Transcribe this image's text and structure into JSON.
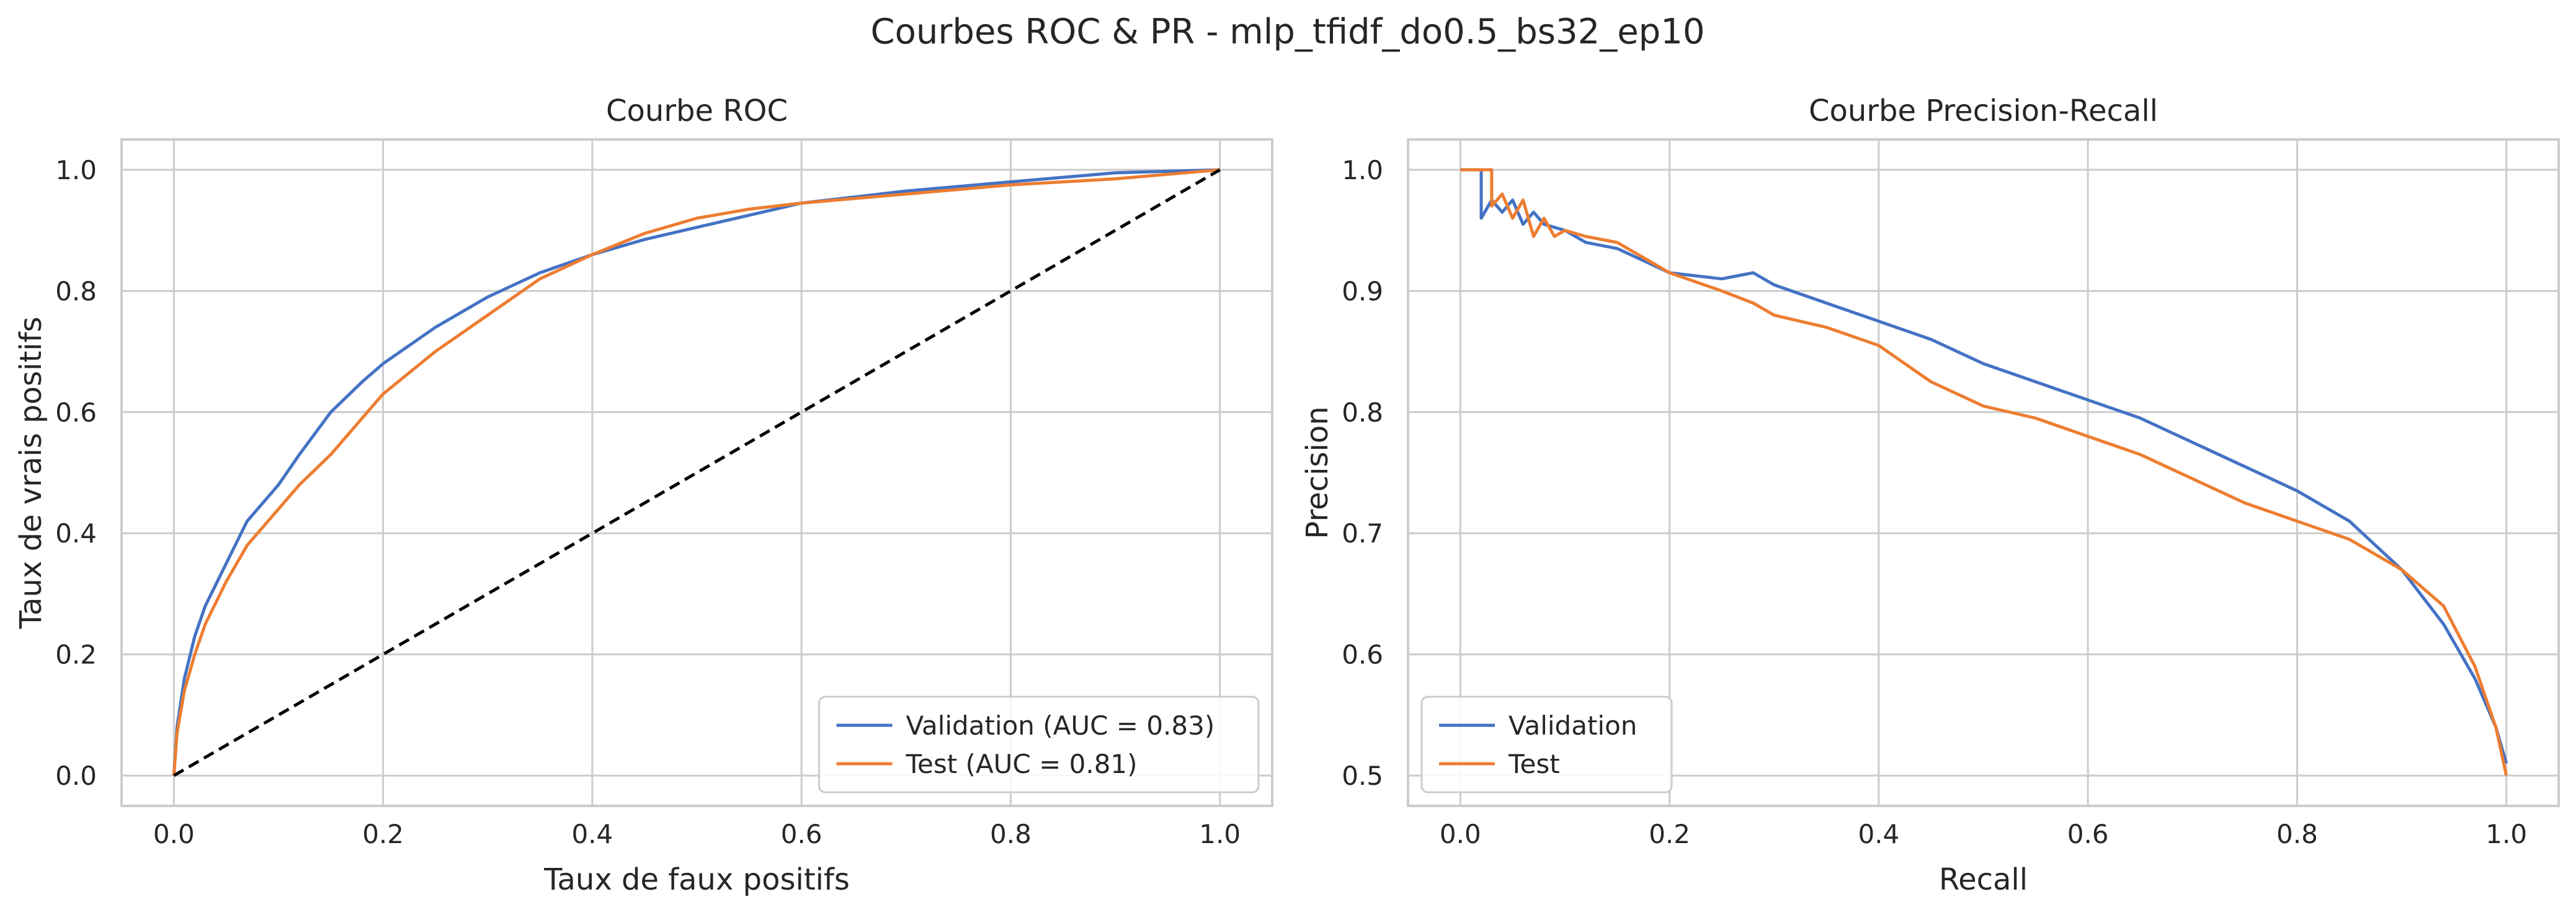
{
  "figure": {
    "title": "Courbes ROC & PR - mlp_tfidf_do0.5_bs32_ep10"
  },
  "colors": {
    "validation": "#4472c4",
    "test": "#ed7d31",
    "diagonal": "#000000",
    "grid": "#cccccc"
  },
  "chart_data": [
    {
      "type": "line",
      "title": "Courbe ROC",
      "xlabel": "Taux de faux positifs",
      "ylabel": "Taux de vrais positifs",
      "xlim": [
        -0.05,
        1.05
      ],
      "ylim": [
        -0.05,
        1.05
      ],
      "xticks": [
        0.0,
        0.2,
        0.4,
        0.6,
        0.8,
        1.0
      ],
      "yticks": [
        0.0,
        0.2,
        0.4,
        0.6,
        0.8,
        1.0
      ],
      "xtick_labels": [
        "0.0",
        "0.2",
        "0.4",
        "0.6",
        "0.8",
        "1.0"
      ],
      "ytick_labels": [
        "0.0",
        "0.2",
        "0.4",
        "0.6",
        "0.8",
        "1.0"
      ],
      "grid": true,
      "legend_position": "lower-right",
      "series": [
        {
          "name": "Validation (AUC = 0.83)",
          "color": "#4472c4",
          "style": "solid",
          "x": [
            0.0,
            0.003,
            0.01,
            0.02,
            0.03,
            0.05,
            0.07,
            0.1,
            0.12,
            0.15,
            0.18,
            0.2,
            0.25,
            0.3,
            0.35,
            0.4,
            0.45,
            0.5,
            0.55,
            0.6,
            0.7,
            0.8,
            0.9,
            1.0
          ],
          "y": [
            0.0,
            0.08,
            0.16,
            0.23,
            0.28,
            0.35,
            0.42,
            0.48,
            0.53,
            0.6,
            0.65,
            0.68,
            0.74,
            0.79,
            0.83,
            0.86,
            0.885,
            0.905,
            0.925,
            0.945,
            0.965,
            0.98,
            0.995,
            1.0
          ]
        },
        {
          "name": "Test (AUC = 0.81)",
          "color": "#ed7d31",
          "style": "solid",
          "x": [
            0.0,
            0.003,
            0.01,
            0.02,
            0.03,
            0.05,
            0.07,
            0.1,
            0.12,
            0.15,
            0.18,
            0.2,
            0.25,
            0.3,
            0.35,
            0.4,
            0.45,
            0.5,
            0.55,
            0.6,
            0.7,
            0.8,
            0.9,
            1.0
          ],
          "y": [
            0.0,
            0.07,
            0.14,
            0.2,
            0.25,
            0.32,
            0.38,
            0.44,
            0.48,
            0.53,
            0.59,
            0.63,
            0.7,
            0.76,
            0.82,
            0.86,
            0.895,
            0.92,
            0.935,
            0.945,
            0.96,
            0.975,
            0.985,
            1.0
          ]
        },
        {
          "name": "",
          "color": "#000000",
          "style": "dashed",
          "x": [
            0.0,
            1.0
          ],
          "y": [
            0.0,
            1.0
          ]
        }
      ]
    },
    {
      "type": "line",
      "title": "Courbe Precision-Recall",
      "xlabel": "Recall",
      "ylabel": "Precision",
      "xlim": [
        -0.05,
        1.05
      ],
      "ylim": [
        0.475,
        1.025
      ],
      "xticks": [
        0.0,
        0.2,
        0.4,
        0.6,
        0.8,
        1.0
      ],
      "yticks": [
        0.5,
        0.6,
        0.7,
        0.8,
        0.9,
        1.0
      ],
      "xtick_labels": [
        "0.0",
        "0.2",
        "0.4",
        "0.6",
        "0.8",
        "1.0"
      ],
      "ytick_labels": [
        "0.5",
        "0.6",
        "0.7",
        "0.8",
        "0.9",
        "1.0"
      ],
      "grid": true,
      "legend_position": "lower-left",
      "series": [
        {
          "name": "Validation",
          "color": "#4472c4",
          "style": "solid",
          "x": [
            0.0,
            0.015,
            0.02,
            0.02,
            0.03,
            0.04,
            0.05,
            0.06,
            0.07,
            0.08,
            0.1,
            0.12,
            0.15,
            0.2,
            0.25,
            0.28,
            0.3,
            0.35,
            0.4,
            0.45,
            0.5,
            0.55,
            0.6,
            0.65,
            0.7,
            0.75,
            0.8,
            0.85,
            0.9,
            0.94,
            0.97,
            0.99,
            1.0
          ],
          "y": [
            1.0,
            1.0,
            1.0,
            0.96,
            0.975,
            0.965,
            0.975,
            0.955,
            0.965,
            0.955,
            0.95,
            0.94,
            0.935,
            0.915,
            0.91,
            0.915,
            0.905,
            0.89,
            0.875,
            0.86,
            0.84,
            0.825,
            0.81,
            0.795,
            0.775,
            0.755,
            0.735,
            0.71,
            0.67,
            0.625,
            0.58,
            0.54,
            0.51
          ]
        },
        {
          "name": "Test",
          "color": "#ed7d31",
          "style": "solid",
          "x": [
            0.0,
            0.025,
            0.03,
            0.03,
            0.04,
            0.05,
            0.06,
            0.07,
            0.08,
            0.09,
            0.1,
            0.12,
            0.15,
            0.2,
            0.25,
            0.28,
            0.3,
            0.35,
            0.4,
            0.45,
            0.5,
            0.55,
            0.6,
            0.65,
            0.7,
            0.75,
            0.8,
            0.85,
            0.9,
            0.94,
            0.97,
            0.99,
            1.0
          ],
          "y": [
            1.0,
            1.0,
            1.0,
            0.97,
            0.98,
            0.96,
            0.975,
            0.945,
            0.96,
            0.945,
            0.95,
            0.945,
            0.94,
            0.915,
            0.9,
            0.89,
            0.88,
            0.87,
            0.855,
            0.825,
            0.805,
            0.795,
            0.78,
            0.765,
            0.745,
            0.725,
            0.71,
            0.695,
            0.67,
            0.64,
            0.59,
            0.54,
            0.5
          ]
        }
      ]
    }
  ]
}
